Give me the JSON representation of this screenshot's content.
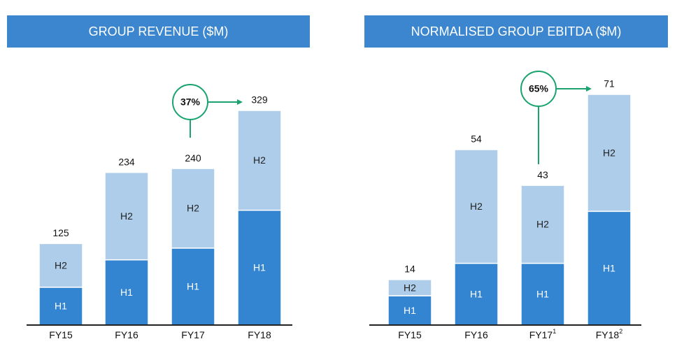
{
  "chart_data": [
    {
      "type": "stacked_bar",
      "title": "GROUP REVENUE ($M)",
      "categories": [
        "FY15",
        "FY16",
        "FY17",
        "FY18"
      ],
      "category_notes": [
        null,
        null,
        null,
        null
      ],
      "series": [
        {
          "name": "H1",
          "color": "#3385d1",
          "values": [
            58,
            100,
            118,
            176
          ]
        },
        {
          "name": "H2",
          "color": "#aecdea",
          "values": [
            67,
            134,
            122,
            153
          ]
        }
      ],
      "totals": [
        125,
        234,
        240,
        329
      ],
      "annotation": "37%"
    },
    {
      "type": "stacked_bar",
      "title": "NORMALISED GROUP EBITDA ($M)",
      "categories": [
        "FY15",
        "FY16",
        "FY17",
        "FY18"
      ],
      "category_notes": [
        null,
        null,
        "1",
        "2"
      ],
      "series": [
        {
          "name": "H1",
          "color": "#3385d1",
          "values": [
            9,
            19,
            19,
            35
          ]
        },
        {
          "name": "H2",
          "color": "#aecdea",
          "values": [
            5,
            35,
            24,
            36
          ]
        }
      ],
      "totals": [
        14,
        54,
        43,
        71
      ],
      "annotation": "65%"
    }
  ]
}
